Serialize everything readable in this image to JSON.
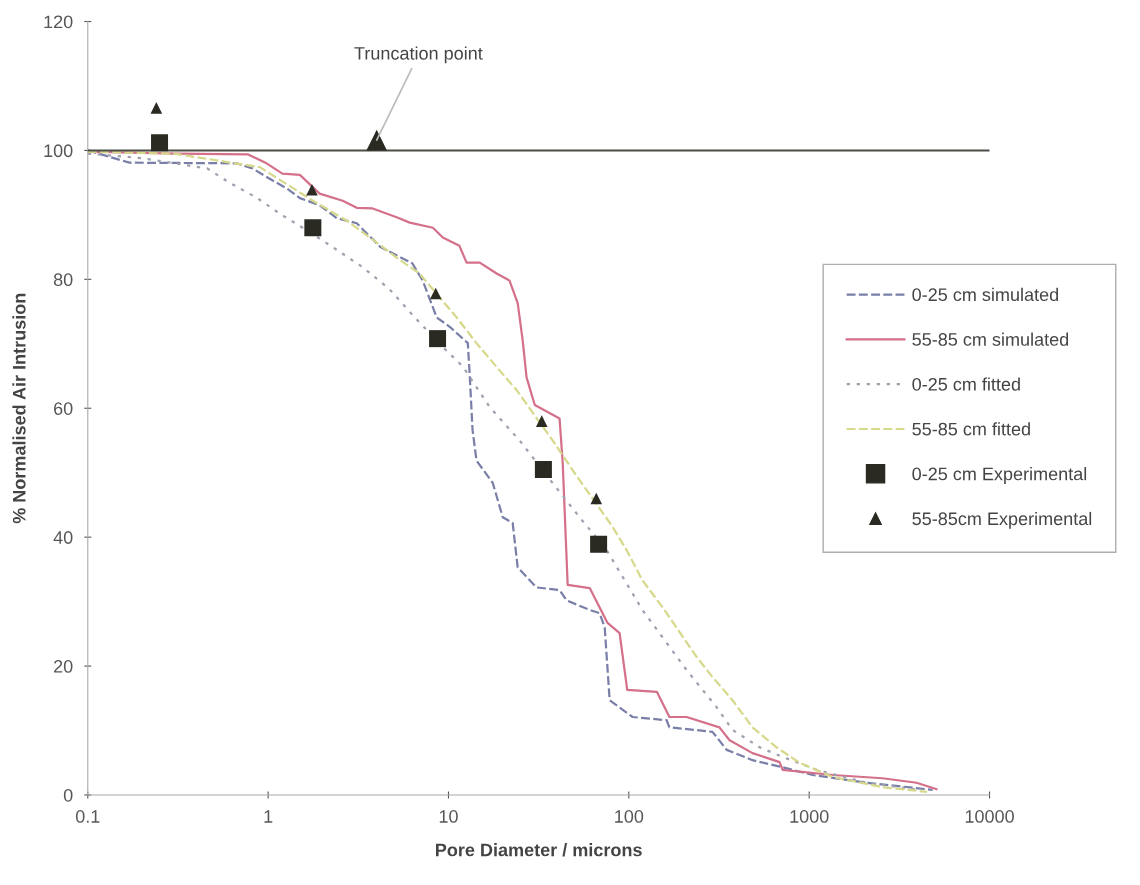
{
  "chart_data": {
    "type": "line",
    "xlabel": "Pore Diameter / microns",
    "ylabel": "% Normalised Air Intrusion",
    "log": "x",
    "xlim": [
      0.1,
      10000
    ],
    "xticks": [
      0.1,
      1,
      10,
      100,
      1000,
      10000
    ],
    "ylim": [
      0,
      120
    ],
    "yticks": [
      0,
      20,
      40,
      60,
      80,
      100,
      120
    ],
    "grid": false,
    "legend": "right",
    "ref_lines": [
      {
        "axis": "y",
        "value": 100,
        "color": "#4a4f48",
        "line_style": "solid"
      }
    ],
    "annotations": [
      {
        "text": "Truncation point",
        "x": 4.0,
        "y": 101.6
      }
    ],
    "series": [
      {
        "name": "0-25 cm simulated",
        "color": "#7a7fa8",
        "line_style": "dashed",
        "marker": "none",
        "x": [
          0.1,
          0.17,
          0.67,
          0.82,
          1.02,
          1.27,
          1.5,
          1.93,
          2.4,
          3.1,
          4.2,
          6.3,
          7.2,
          8.6,
          10.2,
          12.8,
          13.1,
          13.6,
          14.3,
          17.6,
          20,
          22.7,
          24.2,
          30.8,
          41.3,
          45.2,
          60.7,
          68.9,
          73.5,
          78.3,
          105,
          162,
          168,
          291,
          349,
          485,
          713,
          1045,
          2080,
          4830
        ],
        "values": [
          100,
          98.1,
          98,
          97.2,
          95.6,
          94.1,
          92.6,
          91.5,
          89.5,
          88.7,
          85,
          82.5,
          79.8,
          74.1,
          72.6,
          70.1,
          65.4,
          56.6,
          51.9,
          48.4,
          43.1,
          42.2,
          35.3,
          32.2,
          31.8,
          30.2,
          28.7,
          28.2,
          26,
          14.7,
          12.1,
          11.6,
          10.5,
          9.8,
          7,
          5.4,
          4.3,
          3.1,
          1.9,
          0.8
        ]
      },
      {
        "name": "55-85 cm simulated",
        "color": "#d4708a",
        "line_style": "solid",
        "marker": "none",
        "x": [
          0.1,
          0.31,
          0.77,
          0.98,
          1.2,
          1.5,
          1.93,
          2.59,
          3.1,
          3.8,
          5.2,
          6.1,
          8.2,
          9.3,
          11.5,
          12.6,
          14.9,
          18.5,
          21.8,
          24.2,
          25.8,
          27.1,
          30.1,
          41.3,
          43,
          45.8,
          60.7,
          76.2,
          88.9,
          98,
          143,
          168,
          209,
          318,
          362,
          485,
          685,
          713,
          1349,
          2553,
          3940,
          5080
        ],
        "values": [
          99.8,
          99.5,
          99.4,
          98,
          96.4,
          96.2,
          93.3,
          92.2,
          91.1,
          91,
          89.6,
          88.8,
          88,
          86.5,
          85.2,
          82.6,
          82.6,
          80.9,
          79.8,
          76.3,
          70.5,
          64.8,
          60.5,
          58.4,
          51.5,
          32.6,
          32.1,
          26.7,
          25.1,
          16.3,
          16,
          12.1,
          12.1,
          10.5,
          8.5,
          6.5,
          5.1,
          3.9,
          3.1,
          2.6,
          1.9,
          0.9
        ]
      },
      {
        "name": "0-25 cm fitted",
        "color": "#a0a0ae",
        "line_style": "dotted",
        "marker": "none",
        "x": [
          0.1,
          0.2,
          0.46,
          0.61,
          0.86,
          1.16,
          1.64,
          2.28,
          3.34,
          4.7,
          6.3,
          9.3,
          12,
          16.9,
          24.8,
          37.8,
          53.3,
          75.3,
          119,
          162,
          209,
          307,
          376,
          531,
          713,
          1099,
          2080,
          4000
        ],
        "values": [
          99.5,
          98.8,
          97.2,
          95,
          92.7,
          90.2,
          87.6,
          85,
          81.9,
          78.5,
          74.5,
          69.5,
          66.5,
          60.2,
          55,
          48.4,
          43.1,
          38,
          28.7,
          23.6,
          19.4,
          13.6,
          10.1,
          7.4,
          5.9,
          3.9,
          1.9,
          0.8
        ]
      },
      {
        "name": "55-85 cm fitted",
        "color": "#d6d88a",
        "line_style": "dashed",
        "marker": "none",
        "x": [
          0.1,
          0.3,
          0.9,
          1.77,
          2.73,
          3.66,
          5.2,
          6.9,
          11.1,
          14.3,
          18.5,
          23.9,
          37.8,
          48.8,
          81.3,
          97.2,
          119,
          154,
          238,
          291,
          376,
          485,
          659,
          885,
          1349,
          2553,
          4500
        ],
        "values": [
          99.8,
          99.5,
          97.4,
          92.2,
          89.1,
          86.5,
          83.3,
          80.9,
          74.1,
          70.1,
          66.4,
          62.8,
          55,
          50.4,
          41.6,
          38,
          33.3,
          29.1,
          21.4,
          18.3,
          14.7,
          10.5,
          7.4,
          5,
          2.8,
          1.2,
          0.5
        ]
      },
      {
        "name": "0-25 cm Experimental",
        "type": "scatter",
        "color": "#2a2a22",
        "marker": "square",
        "x": [
          0.25,
          1.77,
          8.7,
          33.6,
          68
        ],
        "values": [
          101.2,
          88,
          70.8,
          50.5,
          38.9
        ]
      },
      {
        "name": "55-85cm Experimental",
        "type": "scatter",
        "color": "#2a2a22",
        "marker": "triangle",
        "x": [
          0.24,
          1.75,
          8.5,
          32.9,
          66
        ],
        "values": [
          106.6,
          93.9,
          77.8,
          58,
          46
        ]
      },
      {
        "type": "scatter",
        "color": "#2a2a22",
        "marker": "triangle",
        "x": [
          4.0
        ],
        "values": [
          101.6
        ]
      }
    ]
  }
}
